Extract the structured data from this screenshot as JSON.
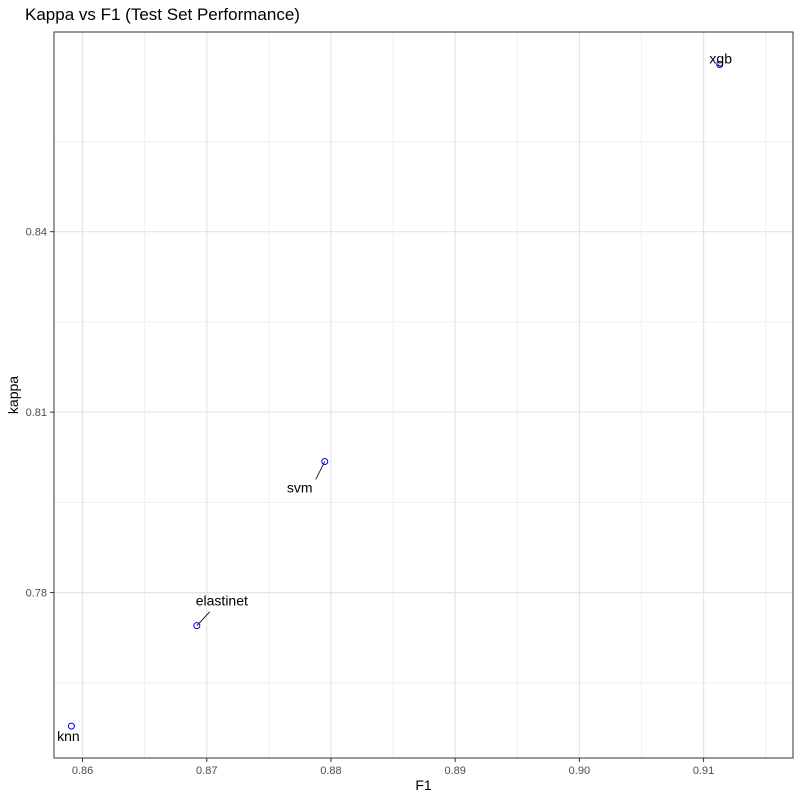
{
  "chart_data": {
    "type": "scatter",
    "title": "Kappa vs F1 (Test Set Performance)",
    "xlabel": "F1",
    "ylabel": "kappa",
    "xlim": [
      0.8577,
      0.9172
    ],
    "ylim": [
      0.7525,
      0.8732
    ],
    "x_ticks": [
      0.86,
      0.87,
      0.88,
      0.89,
      0.9,
      0.91
    ],
    "x_tick_labels": [
      "0.86",
      "0.87",
      "0.88",
      "0.89",
      "0.90",
      "0.91"
    ],
    "y_ticks": [
      0.78,
      0.81,
      0.84
    ],
    "y_tick_labels": [
      "0.78",
      "0.81",
      "0.84"
    ],
    "grid": true,
    "point_color": "#0000ff",
    "points": [
      {
        "label": "knn",
        "x": 0.8591,
        "y": 0.7578
      },
      {
        "label": "elastinet",
        "x": 0.8692,
        "y": 0.7745
      },
      {
        "label": "svm",
        "x": 0.8795,
        "y": 0.8018
      },
      {
        "label": "xgb",
        "x": 0.9113,
        "y": 0.8678
      }
    ]
  }
}
